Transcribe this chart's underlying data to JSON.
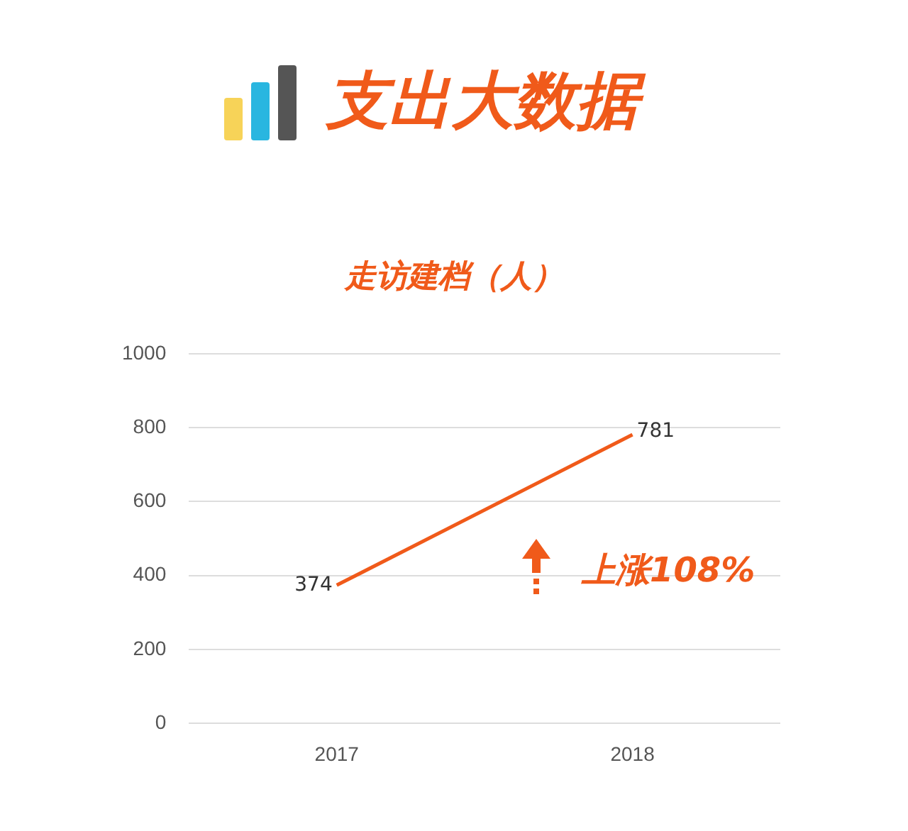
{
  "chart_data": {
    "type": "line",
    "title": "支出大数据",
    "subtitle": "走访建档（人）",
    "categories": [
      "2017",
      "2018"
    ],
    "series": [
      {
        "color": "#f05a1a",
        "values": [
          374,
          781
        ]
      }
    ],
    "ylim": [
      0,
      1000
    ],
    "yticks": [
      0,
      200,
      400,
      600,
      800,
      1000
    ],
    "grid": "y",
    "data_labels": true,
    "annotations": [
      "上涨108%"
    ]
  }
}
